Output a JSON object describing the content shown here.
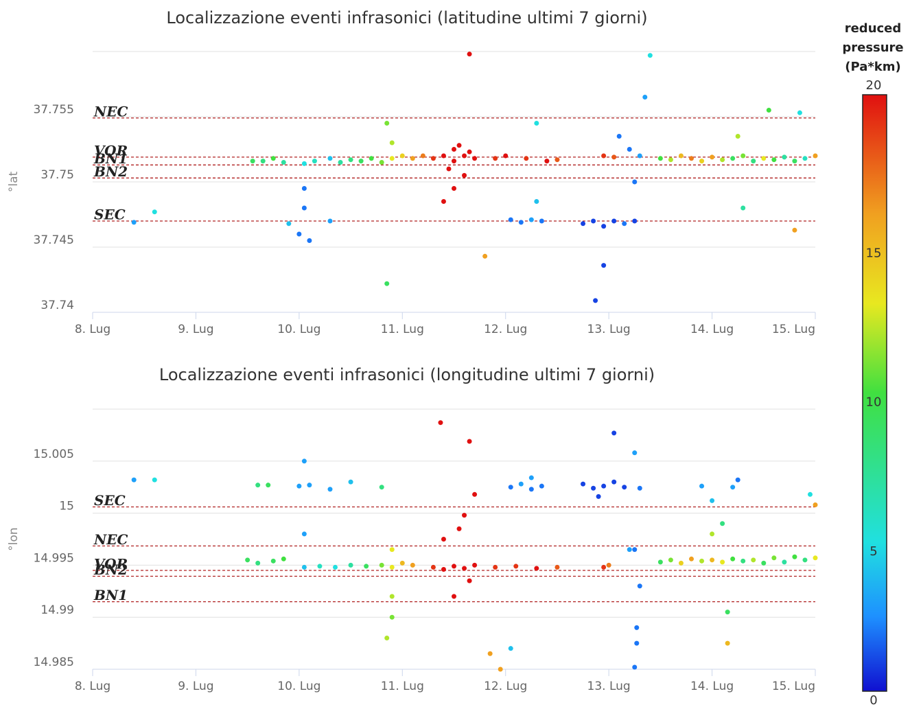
{
  "chart_data": [
    {
      "type": "scatter",
      "title": "Localizzazione eventi infrasonici (latitudine ultimi 7 giorni)",
      "y_label": "°lat",
      "xlim": [
        8,
        15
      ],
      "xticks": [
        {
          "value": 8,
          "label": "8. Lug"
        },
        {
          "value": 9,
          "label": "9. Lug"
        },
        {
          "value": 10,
          "label": "10. Lug"
        },
        {
          "value": 11,
          "label": "11. Lug"
        },
        {
          "value": 12,
          "label": "12. Lug"
        },
        {
          "value": 13,
          "label": "13. Lug"
        },
        {
          "value": 14,
          "label": "14. Lug"
        },
        {
          "value": 15,
          "label": "15. Lug"
        }
      ],
      "ylim": [
        37.74,
        37.76
      ],
      "yticks": [
        37.74,
        37.745,
        37.75,
        37.755
      ],
      "grid": true,
      "reference_lines": [
        {
          "name": "NEC",
          "value": 37.7549
        },
        {
          "name": "VOR",
          "value": 37.7519
        },
        {
          "name": "BN1",
          "value": 37.7513
        },
        {
          "name": "BN2",
          "value": 37.7503
        },
        {
          "name": "SEC",
          "value": 37.747
        }
      ],
      "x": [
        9.55,
        9.65,
        9.75,
        9.85,
        10.05,
        10.15,
        10.3,
        10.4,
        10.5,
        10.6,
        10.7,
        10.8,
        10.05,
        10.05,
        10.0,
        10.1,
        9.9,
        10.3,
        10.9,
        11.0,
        11.1,
        11.2,
        10.9,
        10.85,
        11.3,
        11.4,
        11.5,
        11.6,
        11.7,
        11.55,
        11.65,
        11.45,
        11.6,
        11.5,
        11.65,
        11.4,
        11.9,
        12.0,
        12.2,
        12.4,
        12.5,
        12.05,
        12.15,
        12.25,
        12.35,
        12.3,
        12.75,
        12.85,
        12.95,
        13.05,
        13.15,
        13.25,
        12.95,
        12.87,
        13.1,
        13.2,
        13.25,
        13.3,
        13.35,
        12.95,
        13.05,
        13.5,
        13.6,
        13.7,
        13.8,
        13.9,
        14.0,
        14.1,
        14.2,
        14.3,
        14.4,
        14.5,
        14.6,
        14.7,
        14.8,
        14.9,
        15.0,
        14.25,
        14.55,
        14.85,
        14.3,
        13.4,
        8.4,
        8.6,
        11.5,
        10.85,
        11.8,
        14.8,
        12.3
      ],
      "values": [
        37.7516,
        37.7516,
        37.7518,
        37.7515,
        37.7514,
        37.7516,
        37.7518,
        37.7515,
        37.7517,
        37.7516,
        37.7518,
        37.7515,
        37.7495,
        37.748,
        37.746,
        37.7455,
        37.7468,
        37.747,
        37.7518,
        37.752,
        37.7518,
        37.752,
        37.753,
        37.7545,
        37.7518,
        37.752,
        37.7516,
        37.752,
        37.7518,
        37.7528,
        37.7523,
        37.751,
        37.7505,
        37.7495,
        37.7598,
        37.7485,
        37.7518,
        37.752,
        37.7518,
        37.7516,
        37.7517,
        37.7471,
        37.7469,
        37.7471,
        37.747,
        37.7485,
        37.7468,
        37.747,
        37.7466,
        37.747,
        37.7468,
        37.747,
        37.7436,
        37.7409,
        37.7535,
        37.7525,
        37.75,
        37.752,
        37.7565,
        37.752,
        37.7519,
        37.7518,
        37.7517,
        37.752,
        37.7518,
        37.7516,
        37.7519,
        37.7517,
        37.7518,
        37.752,
        37.7516,
        37.7518,
        37.7517,
        37.7519,
        37.7516,
        37.7518,
        37.752,
        37.7535,
        37.7555,
        37.7553,
        37.748,
        37.7597,
        37.7469,
        37.7477,
        37.7525,
        37.7422,
        37.7443,
        37.7463,
        37.7545
      ],
      "pressure": [
        9,
        8,
        10,
        7,
        5,
        6,
        4,
        7,
        8,
        9,
        10,
        11,
        2,
        2,
        2,
        2,
        4,
        3,
        13,
        14,
        16,
        17,
        12,
        11,
        19,
        20,
        20,
        20,
        20,
        20,
        20,
        20,
        20,
        20,
        20,
        20,
        19,
        20,
        19,
        20,
        18,
        2,
        2,
        3,
        2,
        4,
        1,
        1,
        1,
        1,
        2,
        1,
        1,
        1,
        2,
        2,
        2,
        3,
        3,
        19,
        18,
        10,
        12,
        15,
        17,
        14,
        16,
        12,
        9,
        11,
        8,
        13,
        10,
        7,
        9,
        6,
        16,
        12,
        10,
        5,
        7,
        5,
        3,
        5,
        20,
        9,
        16,
        16,
        5
      ]
    },
    {
      "type": "scatter",
      "title": "Localizzazione eventi infrasonici (longitudine ultimi 7 giorni)",
      "y_label": "°lon",
      "xlim": [
        8,
        15
      ],
      "xticks": [
        {
          "value": 8,
          "label": "8. Lug"
        },
        {
          "value": 9,
          "label": "9. Lug"
        },
        {
          "value": 10,
          "label": "10. Lug"
        },
        {
          "value": 11,
          "label": "11. Lug"
        },
        {
          "value": 12,
          "label": "12. Lug"
        },
        {
          "value": 13,
          "label": "13. Lug"
        },
        {
          "value": 14,
          "label": "14. Lug"
        },
        {
          "value": 15,
          "label": "15. Lug"
        }
      ],
      "ylim": [
        14.985,
        15.01
      ],
      "yticks": [
        14.985,
        14.99,
        14.995,
        15,
        15.005
      ],
      "grid": true,
      "reference_lines": [
        {
          "name": "SEC",
          "value": 15.0006
        },
        {
          "name": "NEC",
          "value": 14.99685
        },
        {
          "name": "VOR",
          "value": 14.9945
        },
        {
          "name": "BN2",
          "value": 14.99394
        },
        {
          "name": "BN1",
          "value": 14.99149
        }
      ],
      "x": [
        8.4,
        8.6,
        9.6,
        9.7,
        10.0,
        10.05,
        10.1,
        10.05,
        10.3,
        10.5,
        10.8,
        9.5,
        9.6,
        9.75,
        9.85,
        10.05,
        10.2,
        10.35,
        10.5,
        10.65,
        10.8,
        10.9,
        11.0,
        11.1,
        10.9,
        10.9,
        10.85,
        10.9,
        11.3,
        11.4,
        11.5,
        11.6,
        11.7,
        11.4,
        11.55,
        11.65,
        11.5,
        11.37,
        11.65,
        11.7,
        11.6,
        11.9,
        12.1,
        12.3,
        12.5,
        12.05,
        12.15,
        12.25,
        12.35,
        12.25,
        12.75,
        12.85,
        12.95,
        13.05,
        13.15,
        13.3,
        13.05,
        13.25,
        12.9,
        13.25,
        13.3,
        13.27,
        13.27,
        13.25,
        13.2,
        12.95,
        13.0,
        13.5,
        13.6,
        13.7,
        13.8,
        13.9,
        14.0,
        14.1,
        14.2,
        14.3,
        14.4,
        14.5,
        14.6,
        14.7,
        14.8,
        14.9,
        15.0,
        14.2,
        14.25,
        14.1,
        14.0,
        14.15,
        14.15,
        14.95,
        15.0,
        11.85,
        11.95,
        12.05,
        13.9,
        14.0
      ],
      "values": [
        15.0032,
        15.0032,
        15.0027,
        15.0027,
        15.0026,
        15.005,
        15.0027,
        14.998,
        15.0023,
        15.003,
        15.0025,
        14.9955,
        14.9952,
        14.9954,
        14.9956,
        14.9948,
        14.9949,
        14.9948,
        14.995,
        14.9949,
        14.995,
        14.9948,
        14.9952,
        14.995,
        14.992,
        14.99,
        14.988,
        14.9965,
        14.9948,
        14.9946,
        14.9949,
        14.9947,
        14.995,
        14.9975,
        14.9985,
        14.9935,
        14.992,
        15.0087,
        15.0069,
        15.0018,
        14.9998,
        14.9948,
        14.9949,
        14.9947,
        14.9948,
        15.0025,
        15.0028,
        15.0023,
        15.0026,
        15.0034,
        15.0028,
        15.0024,
        15.0026,
        15.003,
        15.0025,
        15.0024,
        15.0077,
        15.0058,
        15.0016,
        14.9965,
        14.993,
        14.989,
        14.9875,
        14.9852,
        14.9965,
        14.9948,
        14.995,
        14.9953,
        14.9955,
        14.9952,
        14.9956,
        14.9954,
        14.9955,
        14.9953,
        14.9956,
        14.9954,
        14.9955,
        14.9952,
        14.9957,
        14.9953,
        14.9958,
        14.9955,
        14.9957,
        15.0025,
        15.0032,
        14.999,
        14.998,
        14.9905,
        14.9875,
        15.0018,
        15.0008,
        14.9865,
        14.985,
        14.987,
        15.0026,
        15.0012
      ],
      "pressure": [
        3,
        5,
        8,
        9,
        3,
        3,
        3,
        3,
        3,
        4,
        8,
        9,
        8,
        9,
        10,
        4,
        6,
        5,
        7,
        9,
        11,
        13,
        15,
        16,
        12,
        11,
        12,
        13,
        19,
        20,
        20,
        20,
        20,
        20,
        20,
        20,
        20,
        20,
        20,
        20,
        20,
        19,
        19,
        20,
        18,
        2,
        3,
        2,
        2,
        3,
        1,
        1,
        1,
        1,
        1,
        2,
        1,
        3,
        1,
        2,
        2,
        2,
        2,
        2,
        3,
        19,
        17,
        9,
        11,
        14,
        16,
        12,
        15,
        13,
        10,
        8,
        12,
        9,
        11,
        7,
        10,
        8,
        13,
        3,
        2,
        8,
        12,
        9,
        15,
        5,
        16,
        16,
        16,
        4,
        3,
        4
      ]
    }
  ],
  "colorbar": {
    "title": [
      "reduced",
      "pressure",
      "(Pa*km)"
    ],
    "lim": [
      0,
      20
    ],
    "ticks": [
      0,
      5,
      10,
      15,
      20
    ],
    "stops": [
      {
        "value": 0,
        "color": "#1010d0"
      },
      {
        "value": 2.5,
        "color": "#1e90ff"
      },
      {
        "value": 5,
        "color": "#20e0e0"
      },
      {
        "value": 10,
        "color": "#40e040"
      },
      {
        "value": 13,
        "color": "#e8e820"
      },
      {
        "value": 16,
        "color": "#f0a020"
      },
      {
        "value": 20,
        "color": "#e01010"
      }
    ]
  }
}
